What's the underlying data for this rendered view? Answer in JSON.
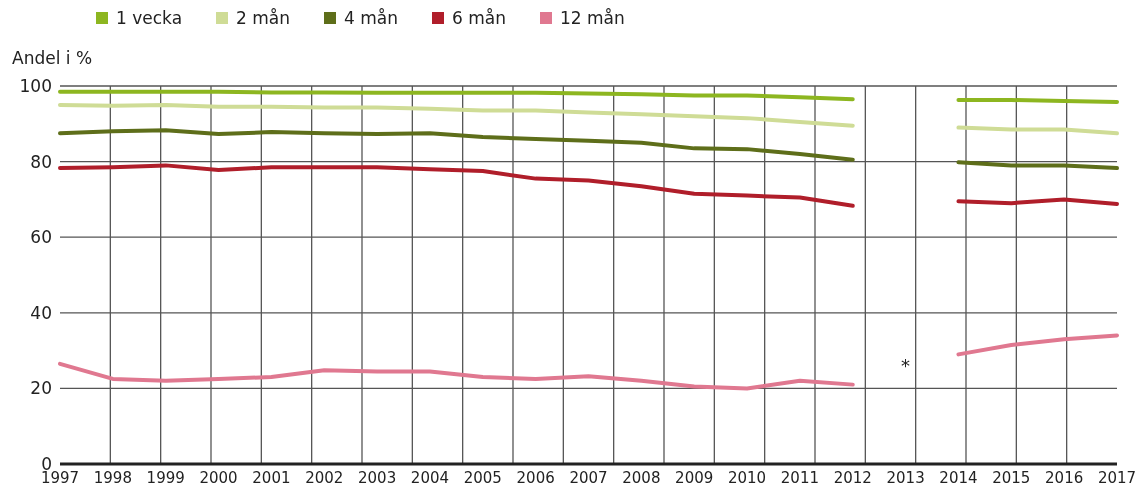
{
  "chart_data": {
    "type": "line",
    "ylabel": "Andel i %",
    "categories": [
      "1997",
      "1998",
      "1999",
      "2000",
      "2001",
      "2002",
      "2003",
      "2004",
      "2005",
      "2006",
      "2007",
      "2008",
      "2009",
      "2010",
      "2011",
      "2012",
      "2013",
      "2014",
      "2015",
      "2016",
      "2017"
    ],
    "series": [
      {
        "name": "1 vecka",
        "color": "#8db620",
        "values": [
          98.5,
          98.5,
          98.5,
          98.5,
          98.3,
          98.3,
          98.2,
          98.2,
          98.2,
          98.2,
          98,
          97.8,
          97.5,
          97.5,
          97,
          96.5,
          null,
          96.3,
          96.3,
          96,
          95.8
        ]
      },
      {
        "name": "2 mån",
        "color": "#cfdc96",
        "values": [
          95,
          94.8,
          95,
          94.5,
          94.5,
          94.3,
          94.3,
          94,
          93.5,
          93.5,
          93,
          92.5,
          92,
          91.5,
          90.5,
          89.5,
          null,
          89,
          88.5,
          88.5,
          87.5
        ]
      },
      {
        "name": "4 mån",
        "color": "#5e6e1a",
        "values": [
          87.5,
          88,
          88.3,
          87.3,
          87.8,
          87.5,
          87.3,
          87.5,
          86.5,
          86,
          85.5,
          85,
          83.5,
          83.3,
          82,
          80.5,
          null,
          79.8,
          79,
          79,
          78.3
        ]
      },
      {
        "name": "6 mån",
        "color": "#b01e2a",
        "values": [
          78.3,
          78.5,
          79,
          77.8,
          78.5,
          78.5,
          78.5,
          78,
          77.5,
          75.5,
          75,
          73.5,
          71.5,
          71,
          70.5,
          68.3,
          null,
          69.5,
          69,
          70,
          68.8
        ]
      },
      {
        "name": "12 mån",
        "color": "#e07890",
        "values": [
          26.5,
          22.5,
          22,
          22.5,
          23,
          24.8,
          24.5,
          24.5,
          23,
          22.5,
          23.2,
          22,
          20.5,
          20,
          22,
          21,
          null,
          29,
          31.5,
          33,
          34
        ]
      }
    ],
    "ylim": [
      0,
      100
    ],
    "yticks": [
      0,
      20,
      40,
      60,
      80,
      100
    ],
    "grid": true,
    "legend": "top left",
    "marker": "none",
    "line_style": "solid",
    "annotations": [
      "*"
    ]
  }
}
